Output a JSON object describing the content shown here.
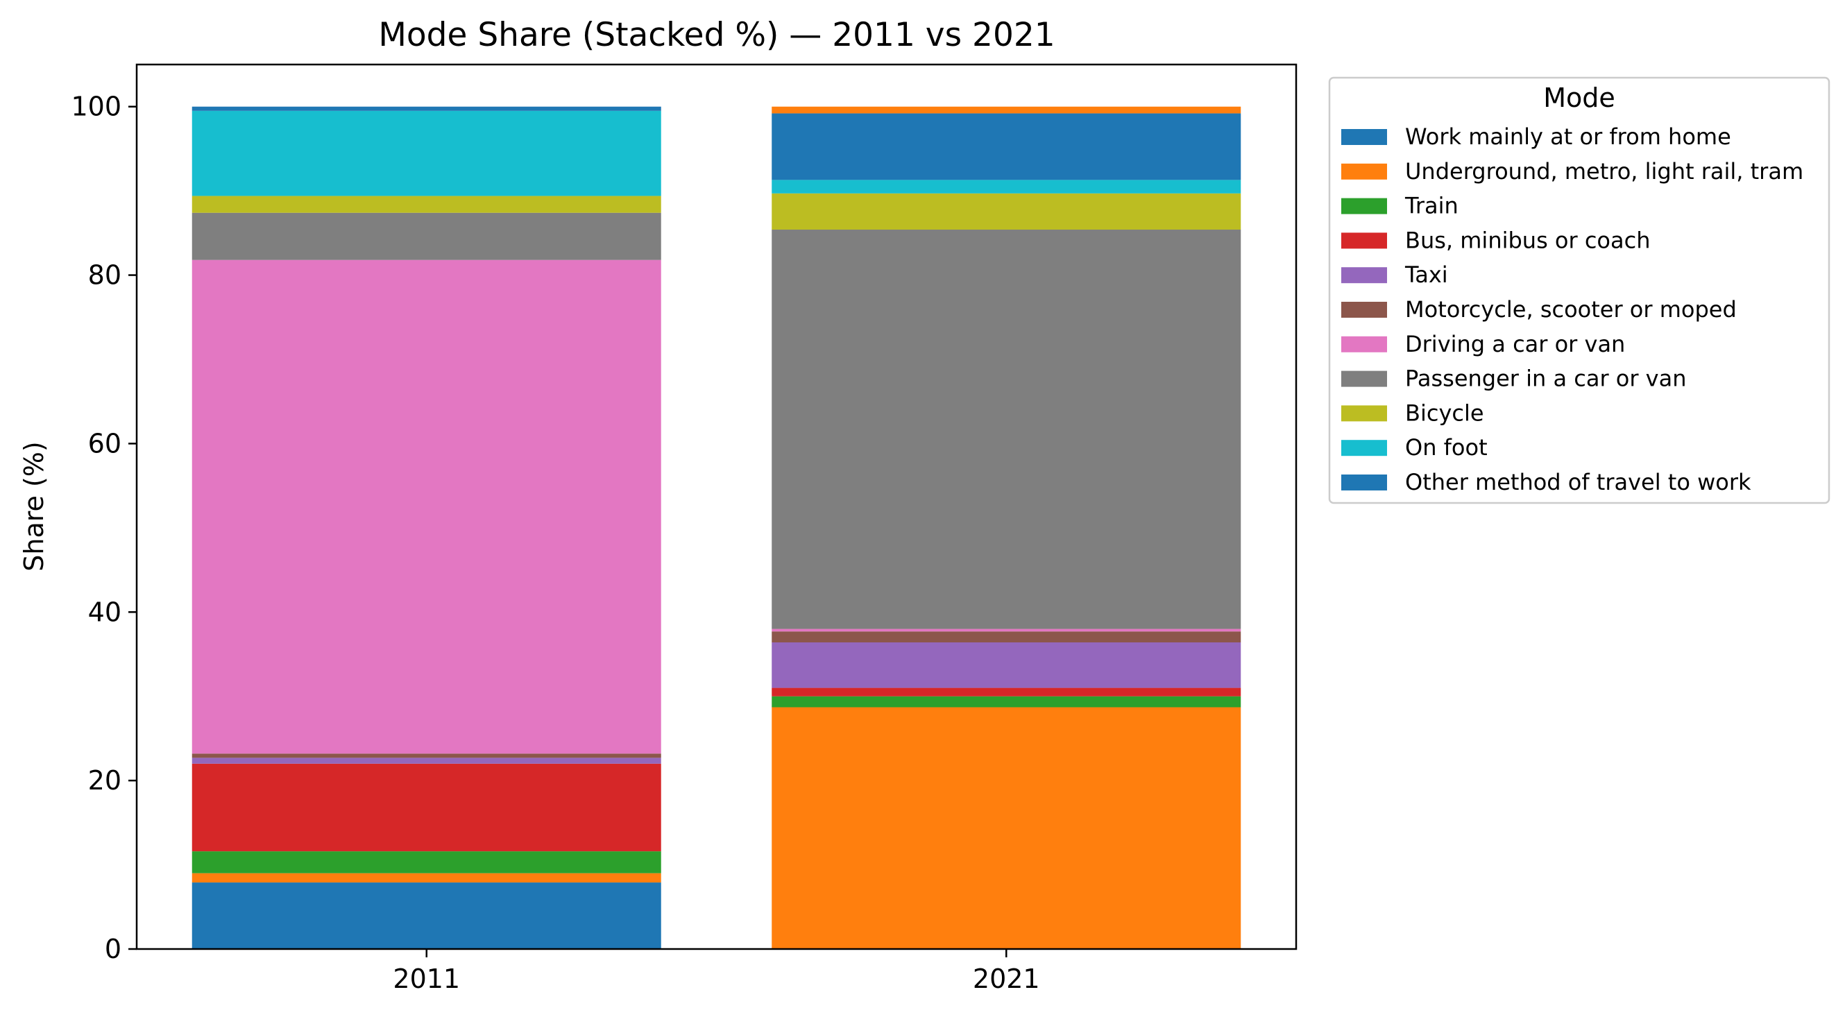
{
  "chart_data": {
    "type": "bar",
    "stacked": true,
    "title": "Mode Share (Stacked %) — 2011 vs 2021",
    "xlabel": "",
    "ylabel": "Share (%)",
    "ylim": [
      0,
      105
    ],
    "yticks": [
      0,
      20,
      40,
      60,
      80,
      100
    ],
    "categories": [
      "2011",
      "2021"
    ],
    "grid": false,
    "legend": {
      "title": "Mode",
      "placement": "outside upper right"
    },
    "series": [
      {
        "name": "Work mainly at or from home",
        "color": "#1f77b4",
        "values": [
          7.9,
          0.0
        ]
      },
      {
        "name": "Underground, metro, light rail, tram",
        "color": "#ff7f0e",
        "values": [
          1.1,
          28.7
        ]
      },
      {
        "name": "Train",
        "color": "#2ca02c",
        "values": [
          2.6,
          1.3
        ]
      },
      {
        "name": "Bus, minibus or coach",
        "color": "#d62728",
        "values": [
          10.4,
          1.0
        ]
      },
      {
        "name": "Taxi",
        "color": "#9467bd",
        "values": [
          0.7,
          5.4
        ]
      },
      {
        "name": "Motorcycle, scooter or moped",
        "color": "#8c564b",
        "values": [
          0.5,
          1.3
        ]
      },
      {
        "name": "Driving a car or van",
        "color": "#e377c2",
        "values": [
          58.6,
          0.3
        ]
      },
      {
        "name": "Passenger in a car or van",
        "color": "#7f7f7f",
        "values": [
          5.6,
          47.4
        ]
      },
      {
        "name": "Bicycle",
        "color": "#bcbd22",
        "values": [
          2.0,
          4.3
        ]
      },
      {
        "name": "On foot",
        "color": "#17becf",
        "values": [
          10.1,
          1.6
        ]
      },
      {
        "name": "Other method of travel to work",
        "color": "#1f77b4",
        "values": [
          0.5,
          7.9
        ]
      },
      {
        "name": "",
        "color": "#ff7f0e",
        "values": [
          0.0,
          0.8
        ]
      }
    ]
  }
}
